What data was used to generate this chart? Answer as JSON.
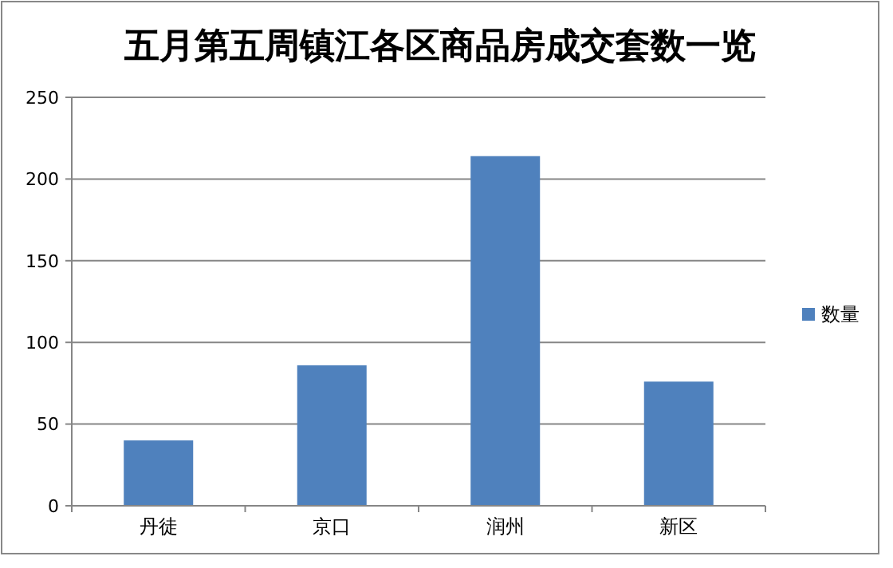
{
  "chart_data": {
    "type": "bar",
    "title": "五月第五周镇江各区商品房成交套数一览",
    "categories": [
      "丹徒",
      "京口",
      "润州",
      "新区"
    ],
    "series": [
      {
        "name": "数量",
        "color": "#4f81bd",
        "values": [
          40,
          86,
          214,
          76
        ]
      }
    ],
    "ylim": [
      0,
      250
    ],
    "yticks": [
      0,
      50,
      100,
      150,
      200,
      250
    ],
    "grid": "y",
    "legend": "right"
  }
}
